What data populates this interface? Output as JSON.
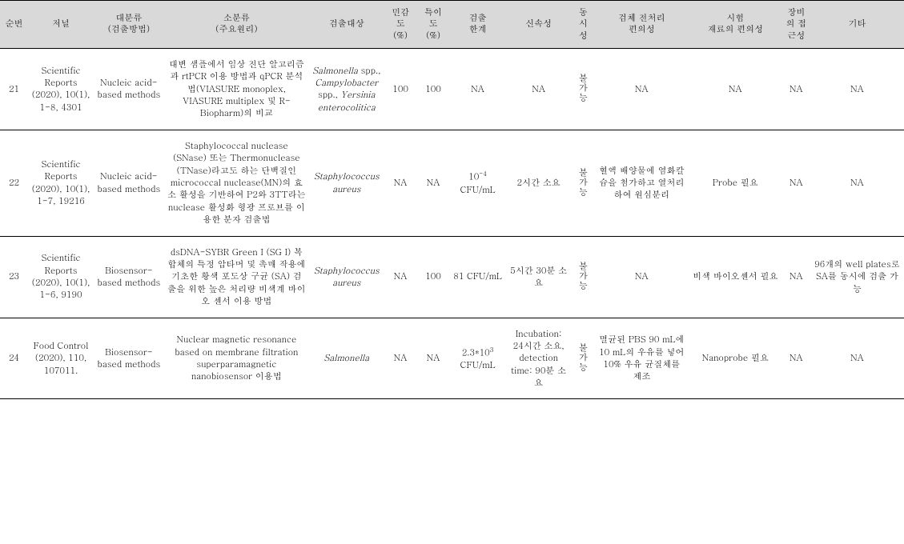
{
  "table": {
    "headers": {
      "num": "순번",
      "journal": "저널",
      "major": "대분류\n(검출방법)",
      "minor": "소분류\n(주요원리)",
      "target": "검출대상",
      "sensitivity": "민감도\n(%)",
      "specificity": "특이도\n(%)",
      "limit": "검출\n한계",
      "rapidity": "신속성",
      "simultaneity": "동시성",
      "pretreatment": "검체 전처리\n편의성",
      "material": "시험\n재료의 편의성",
      "equipment": "장비의 접근성",
      "etc": "기타"
    },
    "rows": [
      {
        "num": "21",
        "journal": "Scientific Reports (2020), 10(1), 1-8, 4301",
        "major": "Nucleic acid-based methods",
        "minor": "대변 샘플에서 임상 진단 알고리즘과 rtPCR 이용 방법과 qPCR 분석법(VIASURE monoplex, VIASURE multiplex 및 R-Biopharm)의 비교",
        "target_html": "<span class=\"italic\">Salmonella</span> spp., <span class=\"italic\">Campylobacter</span> spp., <span class=\"italic\">Yersinia enterocolitica</span>",
        "sensitivity": "100",
        "specificity": "100",
        "limit": "NA",
        "rapidity": "NA",
        "simultaneity": "불가능",
        "pretreatment": "NA",
        "material": "NA",
        "equipment": "NA",
        "etc": "NA"
      },
      {
        "num": "22",
        "journal": "Scientific Reports (2020), 10(1), 1-7, 19216",
        "major": "Nucleic acid-based methods",
        "minor": "Staphylococcal nuclease (SNase) 또는 Thermonuclease (TNase)라고도 하는 단백질인 micrococcal nuclease(MN)의 효소 활성을 기반하여 P2와 3TT라는 nuclease 활성화 형광 프로브를 이용한 분자 검출법",
        "target_html": "<span class=\"italic\">Staphylococcus aureus</span>",
        "sensitivity": "NA",
        "specificity": "NA",
        "limit_html": "10<sup>-4</sup> CFU/mL",
        "rapidity": "2시간 소요",
        "simultaneity": "불가능",
        "pretreatment": "혈액 배양물에 염화칼슘을 첨가하고 열처리하여 원심분리",
        "material": "Probe 필요",
        "equipment": "NA",
        "etc": "NA"
      },
      {
        "num": "23",
        "journal": "Scientific Reports (2020), 10(1), 1-6, 9190",
        "major": "Biosensor-based methods",
        "minor": "dsDNA-SYBR Green I (SG I) 복합체의 특정 압타머 및 촉매 작용에 기초한 황색 포도상 구균 (SA) 검출을 위한 높은 처리량 비색계 바이오 센서 이용 방법",
        "target_html": "<span class=\"italic\">Staphylococcus aureus</span>",
        "sensitivity": "NA",
        "specificity": "100",
        "limit": "81 CFU/mL",
        "rapidity": "5시간 30분 소요",
        "simultaneity": "불가능",
        "pretreatment": "NA",
        "material": "비색 바이오센서 필요",
        "equipment": "NA",
        "etc": "96개의 well plates로 SA를 동시에 검출 가능"
      },
      {
        "num": "24",
        "journal": "Food Control (2020), 110, 107011.",
        "major": "Biosensor-based methods",
        "minor": "Nuclear magnetic resonance based on membrane filtration superparamagnetic nanobiosensor 이용법",
        "target_html": "<span class=\"italic\">Salmonella</span>",
        "sensitivity": "NA",
        "specificity": "NA",
        "limit_html": "2.3*10<sup>3</sup> CFU/mL",
        "rapidity": "Incubation: 24시간 소요, detection time: 90분 소요",
        "simultaneity": "불가능",
        "pretreatment": "멸균된 PBS 90 mL에 10 mL의 우유를 넣어 10% 우유 균질체를 제조",
        "material": "Nanoprobe 필요",
        "equipment": "NA",
        "etc": "NA"
      }
    ]
  }
}
